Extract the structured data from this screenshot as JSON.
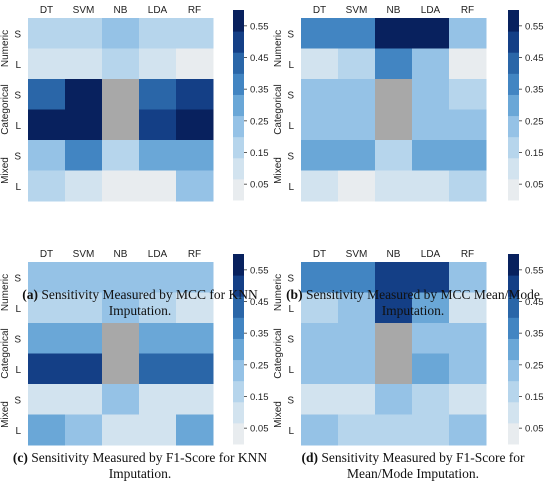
{
  "chart_data": [
    {
      "type": "heatmap",
      "caption_letter": "(a)",
      "caption": "Sensitivity Measured by MCC for KNN Imputation.",
      "columns": [
        "DT",
        "SVM",
        "NB",
        "LDA",
        "RF"
      ],
      "groups": [
        "Numeric",
        "Categorical",
        "Mixed"
      ],
      "rows": [
        "S",
        "L",
        "S",
        "L",
        "S",
        "L"
      ],
      "values": [
        [
          0.18,
          0.16,
          0.22,
          0.18,
          0.15
        ],
        [
          0.08,
          0.07,
          0.15,
          0.1,
          0.06
        ],
        [
          0.45,
          0.56,
          null,
          0.42,
          0.47
        ],
        [
          0.56,
          0.58,
          null,
          0.53,
          0.55
        ],
        [
          0.22,
          0.38,
          0.18,
          0.33,
          0.27
        ],
        [
          0.18,
          0.09,
          0.05,
          0.05,
          0.2
        ]
      ],
      "colorbar_ticks": [
        "0.05",
        "0.15",
        "0.25",
        "0.35",
        "0.45",
        "0.55"
      ],
      "range": [
        0,
        0.6
      ]
    },
    {
      "type": "heatmap",
      "caption_letter": "(b)",
      "caption": "Sensitivity Measured by MCC Mean/Mode Imputation.",
      "columns": [
        "DT",
        "SVM",
        "NB",
        "LDA",
        "RF"
      ],
      "groups": [
        "Numeric",
        "Categorical",
        "Mixed"
      ],
      "rows": [
        "S",
        "L",
        "S",
        "L",
        "S",
        "L"
      ],
      "values": [
        [
          0.38,
          0.38,
          0.58,
          0.58,
          0.2
        ],
        [
          0.12,
          0.15,
          0.38,
          0.25,
          0.06
        ],
        [
          0.2,
          0.2,
          null,
          0.2,
          0.17
        ],
        [
          0.2,
          0.2,
          null,
          0.25,
          0.2
        ],
        [
          0.27,
          0.3,
          0.18,
          0.33,
          0.28
        ],
        [
          0.12,
          0.03,
          0.08,
          0.07,
          0.17
        ]
      ],
      "colorbar_ticks": [
        "0.05",
        "0.15",
        "0.25",
        "0.35",
        "0.45",
        "0.55"
      ],
      "range": [
        0,
        0.6
      ]
    },
    {
      "type": "heatmap",
      "caption_letter": "(c)",
      "caption": "Sensitivity Measured by F1-Score for KNN Imputation.",
      "columns": [
        "DT",
        "SVM",
        "NB",
        "LDA",
        "RF"
      ],
      "groups": [
        "Numeric",
        "Categorical",
        "Mixed"
      ],
      "rows": [
        "S",
        "L",
        "S",
        "L",
        "S",
        "L"
      ],
      "values": [
        [
          0.2,
          0.2,
          0.22,
          0.2,
          0.2
        ],
        [
          0.17,
          0.16,
          0.22,
          0.19,
          0.13
        ],
        [
          0.3,
          0.32,
          null,
          0.28,
          0.32
        ],
        [
          0.48,
          0.48,
          null,
          0.45,
          0.45
        ],
        [
          0.1,
          0.1,
          0.22,
          0.1,
          0.1
        ],
        [
          0.3,
          0.2,
          0.12,
          0.12,
          0.32
        ]
      ],
      "colorbar_ticks": [
        "0.05",
        "0.15",
        "0.25",
        "0.35",
        "0.45",
        "0.55"
      ],
      "range": [
        0,
        0.6
      ]
    },
    {
      "type": "heatmap",
      "caption_letter": "(d)",
      "caption": "Sensitivity Measured by F1-Score for Mean/Mode Imputation.",
      "columns": [
        "DT",
        "SVM",
        "NB",
        "LDA",
        "RF"
      ],
      "groups": [
        "Numeric",
        "Categorical",
        "Mixed"
      ],
      "rows": [
        "S",
        "L",
        "S",
        "L",
        "S",
        "L"
      ],
      "values": [
        [
          0.35,
          0.38,
          0.5,
          0.5,
          0.25
        ],
        [
          0.18,
          0.2,
          0.52,
          0.3,
          0.12
        ],
        [
          0.22,
          0.22,
          null,
          0.22,
          0.2
        ],
        [
          0.25,
          0.25,
          null,
          0.3,
          0.25
        ],
        [
          0.12,
          0.1,
          0.2,
          0.18,
          0.12
        ],
        [
          0.22,
          0.15,
          0.15,
          0.15,
          0.25
        ]
      ],
      "colorbar_ticks": [
        "0.05",
        "0.15",
        "0.25",
        "0.35",
        "0.45",
        "0.55"
      ],
      "range": [
        0,
        0.6
      ]
    }
  ],
  "colors": {
    "missing": "#a8a8a8",
    "palette": [
      "#e8ecef",
      "#d2e3ef",
      "#b6d5ec",
      "#95c2e6",
      "#6aa7d7",
      "#4285c2",
      "#2a66a8",
      "#143f86",
      "#08215e"
    ]
  }
}
